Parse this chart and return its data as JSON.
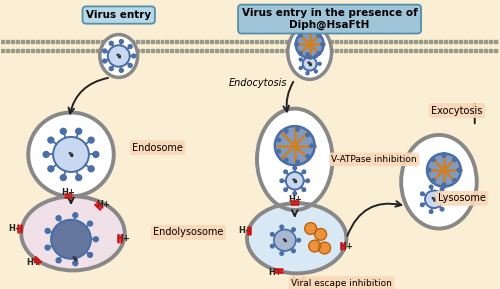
{
  "bg_color": "#faefd4",
  "title_left": "Virus entry",
  "title_right": "Virus entry in the presence of\nDiph@HsaFtH",
  "title_box_color_left": "#b8d8e8",
  "title_box_color_right": "#a0c4d8",
  "label_endocytosis": "Endocytosis",
  "label_endosome": "Endosome",
  "label_endolysosome": "Endolysosome",
  "label_vatpase": "V-ATPase inhibition",
  "label_viral_escape": "Viral escape inhibition",
  "label_exocytosis": "Exocytosis",
  "label_lysosome": "Lysosome",
  "virus_blue": "#4a6ea8",
  "virus_light": "#c8d8f0",
  "virus_mid": "#8aaad0",
  "endosome_outline": "#888888",
  "endolyso_fill_left": "#f0e0e8",
  "endolyso_fill_right": "#d8e8f4",
  "h_color": "#222222",
  "red_color": "#cc1111",
  "orange_color": "#f08828",
  "arrow_color": "#222222",
  "label_bg": "#fad8b8",
  "membrane_dot": "#999988",
  "nano_orange": "#d08020",
  "nano_blue_fill": "#5878a8",
  "lyso_fill": "#ffffff"
}
